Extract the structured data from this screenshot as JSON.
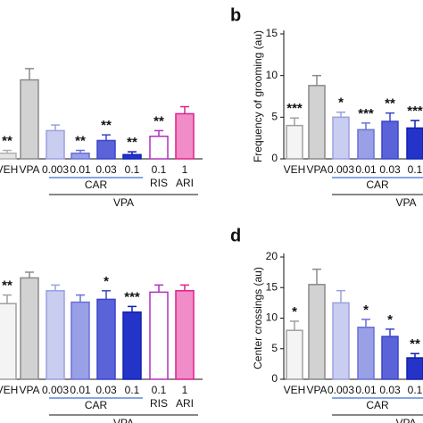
{
  "chart_data": [
    {
      "type": "bar",
      "categories": [
        "VEH",
        "VPA",
        "0.003",
        "0.01",
        "0.03",
        "0.1",
        "0.1",
        "1"
      ],
      "sublabels": [
        "RIS",
        "ARI"
      ],
      "bracket_labels": [
        "CAR",
        "VPA"
      ],
      "values": [
        4,
        56,
        20,
        4,
        13,
        3,
        16,
        32
      ],
      "errors": [
        2,
        8,
        4,
        2,
        4,
        2,
        4,
        5
      ],
      "significance": [
        "**",
        null,
        null,
        "**",
        "**",
        "**",
        "**",
        null
      ],
      "colors": [
        "#e4e4e4",
        "#d2d2d2",
        "#c9cdf0",
        "#9aa0e6",
        "#5a63d8",
        "#2434c8",
        "#ffffff",
        "#f08cc8"
      ],
      "edge_colors": [
        "#b0b0b0",
        "#8a8a8a",
        "#9aa0e0",
        "#6870d8",
        "#3a44c8",
        "#1020b0",
        "#b030c0",
        "#e0208a"
      ],
      "ylim": [
        0,
        100
      ]
    },
    {
      "type": "bar",
      "panel": "b",
      "y_label": "Frequency of grooming (au)",
      "categories": [
        "VEH",
        "VPA",
        "0.003",
        "0.01",
        "0.03",
        "0.1"
      ],
      "bracket_labels": [
        "CAR",
        "VPA"
      ],
      "values": [
        4,
        8.8,
        5,
        3.5,
        4.5,
        3.7
      ],
      "errors": [
        0.9,
        1.2,
        0.6,
        0.8,
        1,
        0.9
      ],
      "significance": [
        "***",
        null,
        "*",
        "***",
        "**",
        "***"
      ],
      "colors": [
        "#f4f4f4",
        "#d2d2d2",
        "#c9cdf0",
        "#9aa0e6",
        "#5a63d8",
        "#2434c8"
      ],
      "edge_colors": [
        "#a0a0a0",
        "#8a8a8a",
        "#9aa0e0",
        "#6870d8",
        "#3a44c8",
        "#1020b0"
      ],
      "ylim": [
        0,
        15
      ],
      "yticks": [
        0,
        5,
        10,
        15
      ]
    },
    {
      "type": "bar",
      "categories": [
        "VEH",
        "VPA",
        "0.003",
        "0.01",
        "0.03",
        "0.1",
        "0.1",
        "1"
      ],
      "sublabels": [
        "RIS",
        "ARI"
      ],
      "bracket_labels": [
        "CAR",
        "VPA"
      ],
      "values": [
        53,
        71,
        62,
        54,
        56,
        47,
        61,
        62
      ],
      "errors": [
        6,
        4,
        4,
        5,
        6,
        4,
        5,
        4
      ],
      "significance": [
        "**",
        null,
        null,
        null,
        "*",
        "***",
        null,
        null
      ],
      "colors": [
        "#f4f4f4",
        "#d2d2d2",
        "#c9cdf0",
        "#9aa0e6",
        "#5a63d8",
        "#2434c8",
        "#ffffff",
        "#f08cc8"
      ],
      "edge_colors": [
        "#a0a0a0",
        "#8a8a8a",
        "#9aa0e0",
        "#6870d8",
        "#3a44c8",
        "#1020b0",
        "#b030c0",
        "#e0208a"
      ],
      "ylim": [
        0,
        100
      ]
    },
    {
      "type": "bar",
      "panel": "d",
      "y_label": "Center crossings (au)",
      "categories": [
        "VEH",
        "VPA",
        "0.003",
        "0.01",
        "0.03",
        "0.1"
      ],
      "bracket_labels": [
        "CAR",
        "VPA"
      ],
      "values": [
        8,
        15.5,
        12.5,
        8.5,
        7,
        3.5
      ],
      "errors": [
        1.5,
        2.5,
        2,
        1.3,
        1.2,
        0.7
      ],
      "significance": [
        "*",
        null,
        null,
        "*",
        "*",
        "**"
      ],
      "colors": [
        "#f4f4f4",
        "#d2d2d2",
        "#c9cdf0",
        "#9aa0e6",
        "#5a63d8",
        "#2434c8"
      ],
      "edge_colors": [
        "#a0a0a0",
        "#8a8a8a",
        "#9aa0e0",
        "#6870d8",
        "#3a44c8",
        "#1020b0"
      ],
      "ylim": [
        0,
        20
      ],
      "yticks": [
        0,
        5,
        10,
        15,
        20
      ]
    }
  ]
}
